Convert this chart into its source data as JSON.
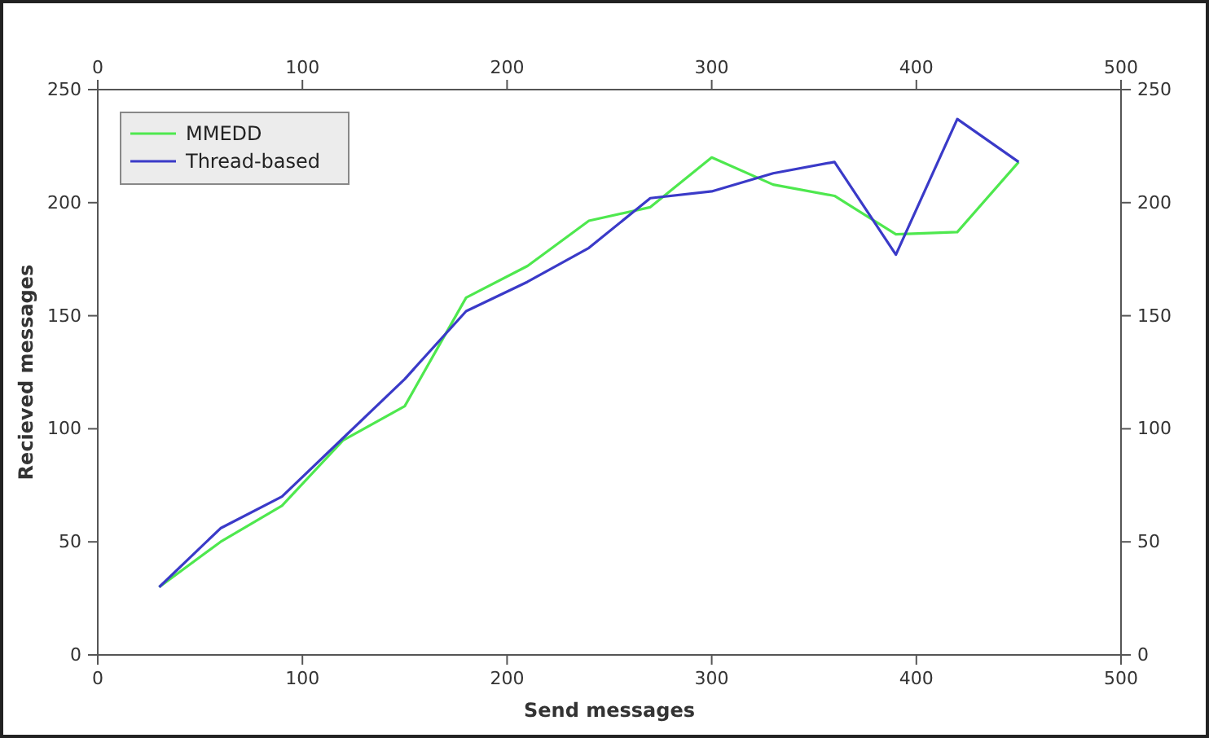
{
  "chart_data": {
    "type": "line",
    "xlabel": "Send messages",
    "ylabel": "Recieved messages",
    "x": [
      30,
      60,
      90,
      120,
      150,
      180,
      210,
      240,
      270,
      300,
      330,
      360,
      390,
      420,
      450
    ],
    "series": [
      {
        "name": "MMEDD",
        "color": "#4ee84e",
        "values": [
          30,
          50,
          66,
          95,
          110,
          158,
          172,
          192,
          198,
          220,
          208,
          203,
          186,
          187,
          218
        ]
      },
      {
        "name": "Thread-based",
        "color": "#3a3ac8",
        "values": [
          30,
          56,
          70,
          96,
          122,
          152,
          165,
          180,
          202,
          205,
          213,
          218,
          177,
          237,
          218
        ]
      }
    ],
    "xlim": [
      0,
      500
    ],
    "xticks": [
      0,
      100,
      200,
      300,
      400,
      500
    ],
    "x2lim": [
      0,
      500
    ],
    "x2ticks": [
      0,
      100,
      200,
      300,
      400,
      500
    ],
    "ylim": [
      0,
      250
    ],
    "yticks": [
      0,
      50,
      100,
      150,
      200,
      250
    ],
    "y2lim": [
      0,
      250
    ],
    "y2ticks": [
      0,
      50,
      100,
      150,
      200,
      250
    ],
    "legend": "top left",
    "grid": false,
    "marker": "none",
    "line_style": "solid"
  }
}
